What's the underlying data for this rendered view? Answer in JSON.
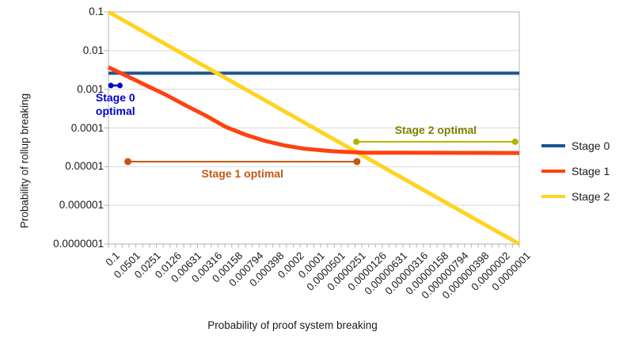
{
  "figure": {
    "x_axis_title": "Probability of proof system breaking",
    "y_axis_title": "Probability of rollup breaking"
  },
  "colors": {
    "grid": "#d9d9d9",
    "axis": "#b3b3b3",
    "text": "#1a1a1a",
    "stage0": "#1A5591",
    "stage1": "#FF420E",
    "stage2": "#FFD320"
  },
  "chart_data": {
    "type": "line",
    "x_scale": "log",
    "y_scale": "log",
    "x_range": [
      0.1,
      1e-07
    ],
    "y_range": [
      0.1,
      1e-07
    ],
    "grid": "horizontal-decades",
    "xlabel": "Probability of proof system breaking",
    "ylabel": "Probability of rollup breaking",
    "x_tick_labels": [
      "0.1",
      "0.0501",
      "0.0251",
      "0.0126",
      "0.00631",
      "0.00316",
      "0.00158",
      "0.000794",
      "0.000398",
      "0.0002",
      "0.0001",
      "0.0000501",
      "0.0000251",
      "0.0000126",
      "0.00000631",
      "0.00000316",
      "0.00000158",
      "0.000000794",
      "0.000000398",
      "0.0000002",
      "0.0000001"
    ],
    "y_tick_labels": [
      "0.1",
      "0.01",
      "0.001",
      "0.0001",
      "0.00001",
      "0.000001",
      "0.0000001"
    ],
    "legend": {
      "position": "right",
      "entries": [
        {
          "label": "Stage 0",
          "color": "#1A5591"
        },
        {
          "label": "Stage 1",
          "color": "#FF420E"
        },
        {
          "label": "Stage 2",
          "color": "#FFD320"
        }
      ]
    },
    "series": [
      {
        "name": "Stage 0",
        "color": "#1A5591",
        "width": 4,
        "points": [
          [
            0.1,
            0.0026
          ],
          [
            1e-07,
            0.0026
          ]
        ]
      },
      {
        "name": "Stage 1",
        "color": "#FF420E",
        "width": 5,
        "points": [
          [
            0.1,
            0.0037
          ],
          [
            0.054,
            0.0022
          ],
          [
            0.028,
            0.00125
          ],
          [
            0.0143,
            0.00071
          ],
          [
            0.0074,
            0.00038
          ],
          [
            0.0038,
            0.00021
          ],
          [
            0.00195,
            0.000107
          ],
          [
            0.001,
            6.7e-05
          ],
          [
            0.00051,
            4.6e-05
          ],
          [
            0.00026,
            3.5e-05
          ],
          [
            0.000135,
            2.9e-05
          ],
          [
            5.4e-05,
            2.5e-05
          ],
          [
            1.85e-05,
            2.3e-05
          ],
          [
            1e-07,
            2.25e-05
          ]
        ]
      },
      {
        "name": "Stage 2",
        "color": "#FFD320",
        "width": 5,
        "points": [
          [
            0.1,
            0.1
          ],
          [
            1e-07,
            1e-07
          ]
        ]
      }
    ],
    "annotations": [
      {
        "name": "stage-0-optimal",
        "label": "Stage 0 optimal",
        "label_lines": [
          "Stage 0",
          "optimal"
        ],
        "text_color": "#0000CC",
        "line_color": "#0000C8",
        "x_start": 0.092,
        "x_end": 0.068,
        "y": 0.00125,
        "label_position": "below",
        "dot_radius": 3.5,
        "line_width": 2.5
      },
      {
        "name": "stage-1-optimal",
        "label": "Stage 1 optimal",
        "label_lines": [
          "Stage 1 optimal"
        ],
        "text_color": "#C45911",
        "line_color": "#C45911",
        "x_start": 0.052,
        "x_end": 2.35e-05,
        "y": 1.35e-05,
        "label_position": "below",
        "dot_radius": 4.5,
        "line_width": 2
      },
      {
        "name": "stage-2-optimal",
        "label": "Stage 2 optimal",
        "label_lines": [
          "Stage 2 optimal"
        ],
        "text_color": "#7F7F00",
        "line_color": "#B2B200",
        "x_start": 2.4e-05,
        "x_end": 1.15e-07,
        "y": 4.4e-05,
        "label_position": "above",
        "dot_radius": 4,
        "line_width": 2
      }
    ]
  }
}
